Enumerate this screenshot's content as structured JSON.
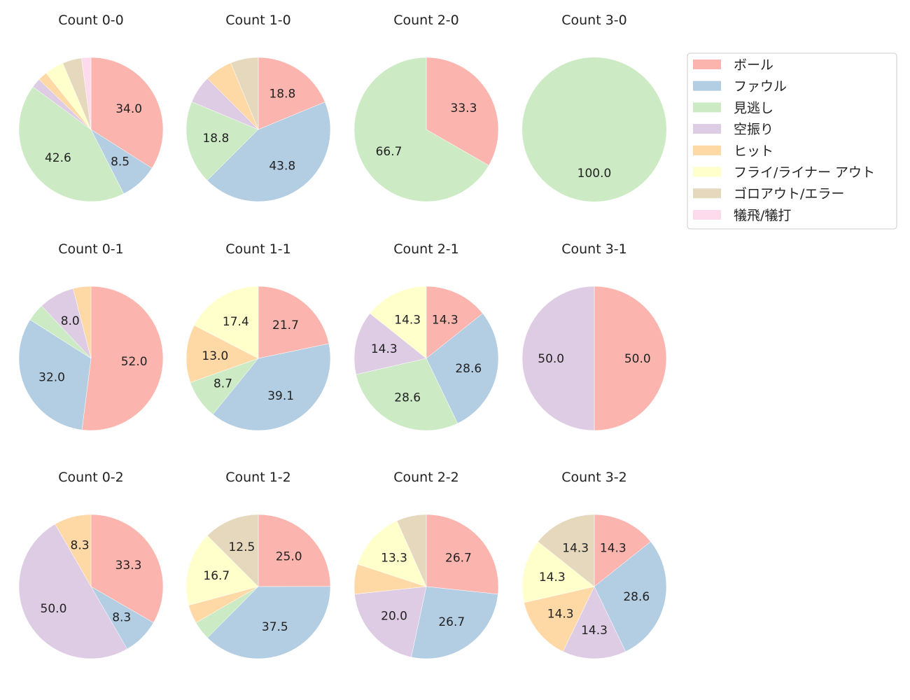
{
  "chart_data": {
    "type": "pie",
    "start_angle": "top",
    "direction": "clockwise",
    "legend_placement": "upper-right",
    "label_threshold_percent": 7,
    "categories": [
      "ボール",
      "ファウル",
      "見逃し",
      "空振り",
      "ヒット",
      "フライ/ライナー アウト",
      "ゴロアウト/エラー",
      "犠飛/犠打"
    ],
    "colors": [
      "#fbb4ae",
      "#b3cde3",
      "#ccebc5",
      "#decbe4",
      "#fed9a6",
      "#ffffcc",
      "#e5d8bd",
      "#fddaec"
    ],
    "charts": [
      {
        "title": "Count 0-0",
        "values": [
          34.0,
          8.5,
          42.6,
          2.1,
          2.1,
          4.3,
          4.3,
          2.1
        ]
      },
      {
        "title": "Count 1-0",
        "values": [
          18.8,
          43.8,
          18.8,
          6.25,
          6.25,
          0,
          6.25,
          0
        ]
      },
      {
        "title": "Count 2-0",
        "values": [
          33.3,
          0,
          66.7,
          0,
          0,
          0,
          0,
          0
        ]
      },
      {
        "title": "Count 3-0",
        "values": [
          0,
          0,
          100.0,
          0,
          0,
          0,
          0,
          0
        ]
      },
      {
        "title": "Count 0-1",
        "values": [
          52.0,
          32.0,
          4.0,
          8.0,
          4.0,
          0,
          0,
          0
        ]
      },
      {
        "title": "Count 1-1",
        "values": [
          21.7,
          39.1,
          8.7,
          0,
          13.0,
          17.4,
          0,
          0
        ]
      },
      {
        "title": "Count 2-1",
        "values": [
          14.3,
          28.6,
          28.6,
          14.3,
          0,
          14.3,
          0,
          0
        ]
      },
      {
        "title": "Count 3-1",
        "values": [
          50.0,
          0,
          0,
          50.0,
          0,
          0,
          0,
          0
        ]
      },
      {
        "title": "Count 0-2",
        "values": [
          33.3,
          8.3,
          0,
          50.0,
          8.3,
          0,
          0,
          0
        ]
      },
      {
        "title": "Count 1-2",
        "values": [
          25.0,
          37.5,
          4.2,
          0,
          4.2,
          16.7,
          12.5,
          0
        ]
      },
      {
        "title": "Count 2-2",
        "values": [
          26.7,
          26.7,
          0,
          20.0,
          6.7,
          13.3,
          6.7,
          0
        ]
      },
      {
        "title": "Count 3-2",
        "values": [
          14.3,
          28.6,
          0,
          14.3,
          14.3,
          14.3,
          14.3,
          0
        ]
      }
    ]
  }
}
